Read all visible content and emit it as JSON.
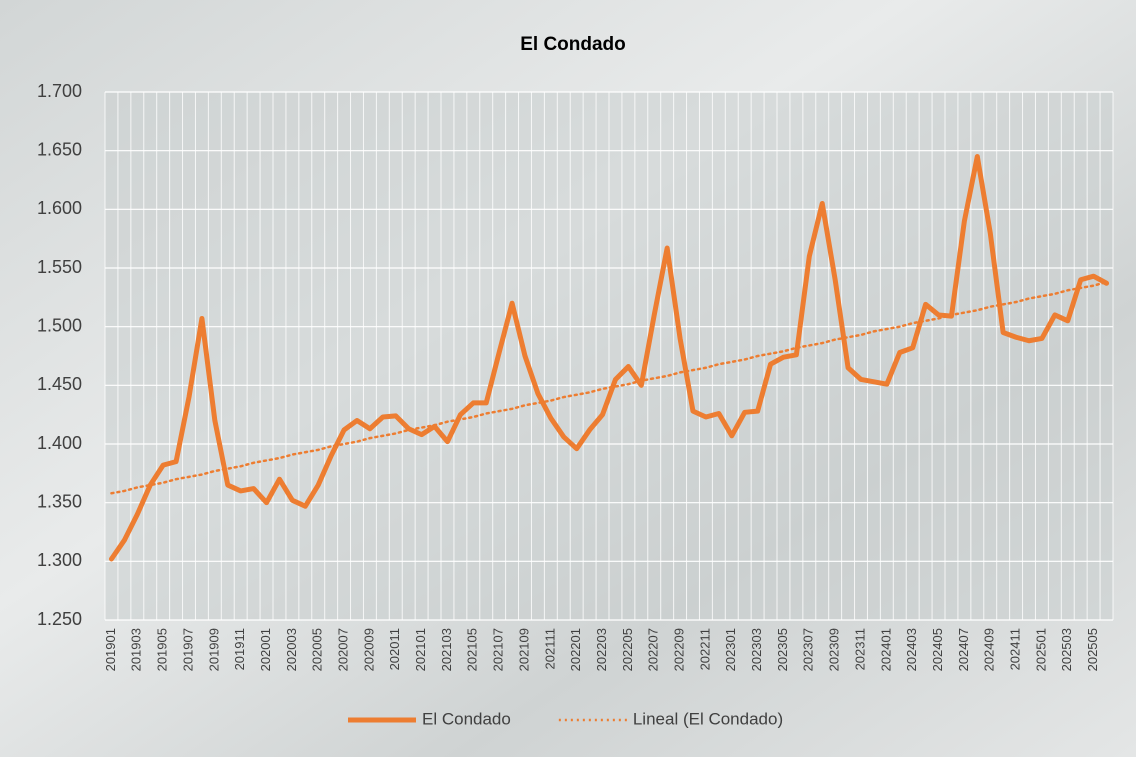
{
  "chart_data": {
    "type": "line",
    "title": "El Condado",
    "categories": [
      "201901",
      null,
      "201903",
      null,
      "201905",
      null,
      "201907",
      null,
      "201909",
      null,
      "201911",
      null,
      "202001",
      null,
      "202003",
      null,
      "202005",
      null,
      "202007",
      null,
      "202009",
      null,
      "202011",
      null,
      "202101",
      null,
      "202103",
      null,
      "202105",
      null,
      "202107",
      null,
      "202109",
      null,
      "202111",
      null,
      "202201",
      null,
      "202203",
      null,
      "202205",
      null,
      "202207",
      null,
      "202209",
      null,
      "202211",
      null,
      "202301",
      null,
      "202303",
      null,
      "202305",
      null,
      "202307",
      null,
      "202309",
      null,
      "202311",
      null,
      "202401",
      null,
      "202403",
      null,
      "202405",
      null,
      "202407",
      null,
      "202409",
      null,
      "202411",
      null,
      "202501",
      null,
      "202503",
      null,
      "202505",
      null
    ],
    "series": [
      {
        "name": "El Condado",
        "color": "#ed7d31",
        "style": "solid",
        "values": [
          1.302,
          1.318,
          1.34,
          1.365,
          1.382,
          1.385,
          1.44,
          1.507,
          1.42,
          1.365,
          1.36,
          1.362,
          1.35,
          1.37,
          1.352,
          1.347,
          1.365,
          1.39,
          1.412,
          1.42,
          1.413,
          1.423,
          1.424,
          1.413,
          1.408,
          1.415,
          1.402,
          1.425,
          1.435,
          1.435,
          1.478,
          1.52,
          1.475,
          1.443,
          1.422,
          1.406,
          1.396,
          1.412,
          1.425,
          1.455,
          1.466,
          1.45,
          1.51,
          1.567,
          1.49,
          1.428,
          1.423,
          1.426,
          1.407,
          1.427,
          1.428,
          1.468,
          1.474,
          1.476,
          1.56,
          1.605,
          1.54,
          1.465,
          1.455,
          1.453,
          1.451,
          1.478,
          1.482,
          1.519,
          1.51,
          1.509,
          1.59,
          1.645,
          1.58,
          1.495,
          1.491,
          1.488,
          1.49,
          1.51,
          1.505,
          1.54,
          1.543,
          1.537
        ]
      },
      {
        "name": "Lineal (El Condado)",
        "color": "#ed7d31",
        "style": "dotted",
        "values": [
          1.358,
          1.36,
          1.363,
          1.365,
          1.367,
          1.37,
          1.372,
          1.374,
          1.377,
          1.379,
          1.381,
          1.384,
          1.386,
          1.388,
          1.391,
          1.393,
          1.395,
          1.398,
          1.4,
          1.402,
          1.405,
          1.407,
          1.409,
          1.412,
          1.414,
          1.416,
          1.419,
          1.421,
          1.423,
          1.426,
          1.428,
          1.43,
          1.433,
          1.435,
          1.437,
          1.44,
          1.442,
          1.444,
          1.447,
          1.449,
          1.451,
          1.454,
          1.456,
          1.458,
          1.461,
          1.463,
          1.465,
          1.468,
          1.47,
          1.472,
          1.475,
          1.477,
          1.479,
          1.482,
          1.484,
          1.486,
          1.489,
          1.491,
          1.493,
          1.496,
          1.498,
          1.5,
          1.503,
          1.505,
          1.507,
          1.51,
          1.512,
          1.514,
          1.517,
          1.519,
          1.521,
          1.524,
          1.526,
          1.528,
          1.531,
          1.533,
          1.535,
          1.538
        ]
      }
    ],
    "ylim": [
      1.25,
      1.7
    ],
    "yticks": [
      {
        "value": 1.25,
        "label": "1.250"
      },
      {
        "value": 1.3,
        "label": "1.300"
      },
      {
        "value": 1.35,
        "label": "1.350"
      },
      {
        "value": 1.4,
        "label": "1.400"
      },
      {
        "value": 1.45,
        "label": "1.450"
      },
      {
        "value": 1.5,
        "label": "1.500"
      },
      {
        "value": 1.55,
        "label": "1.550"
      },
      {
        "value": 1.6,
        "label": "1.600"
      },
      {
        "value": 1.65,
        "label": "1.650"
      },
      {
        "value": 1.7,
        "label": "1.700"
      }
    ],
    "grid": true,
    "legend": "bottom"
  }
}
